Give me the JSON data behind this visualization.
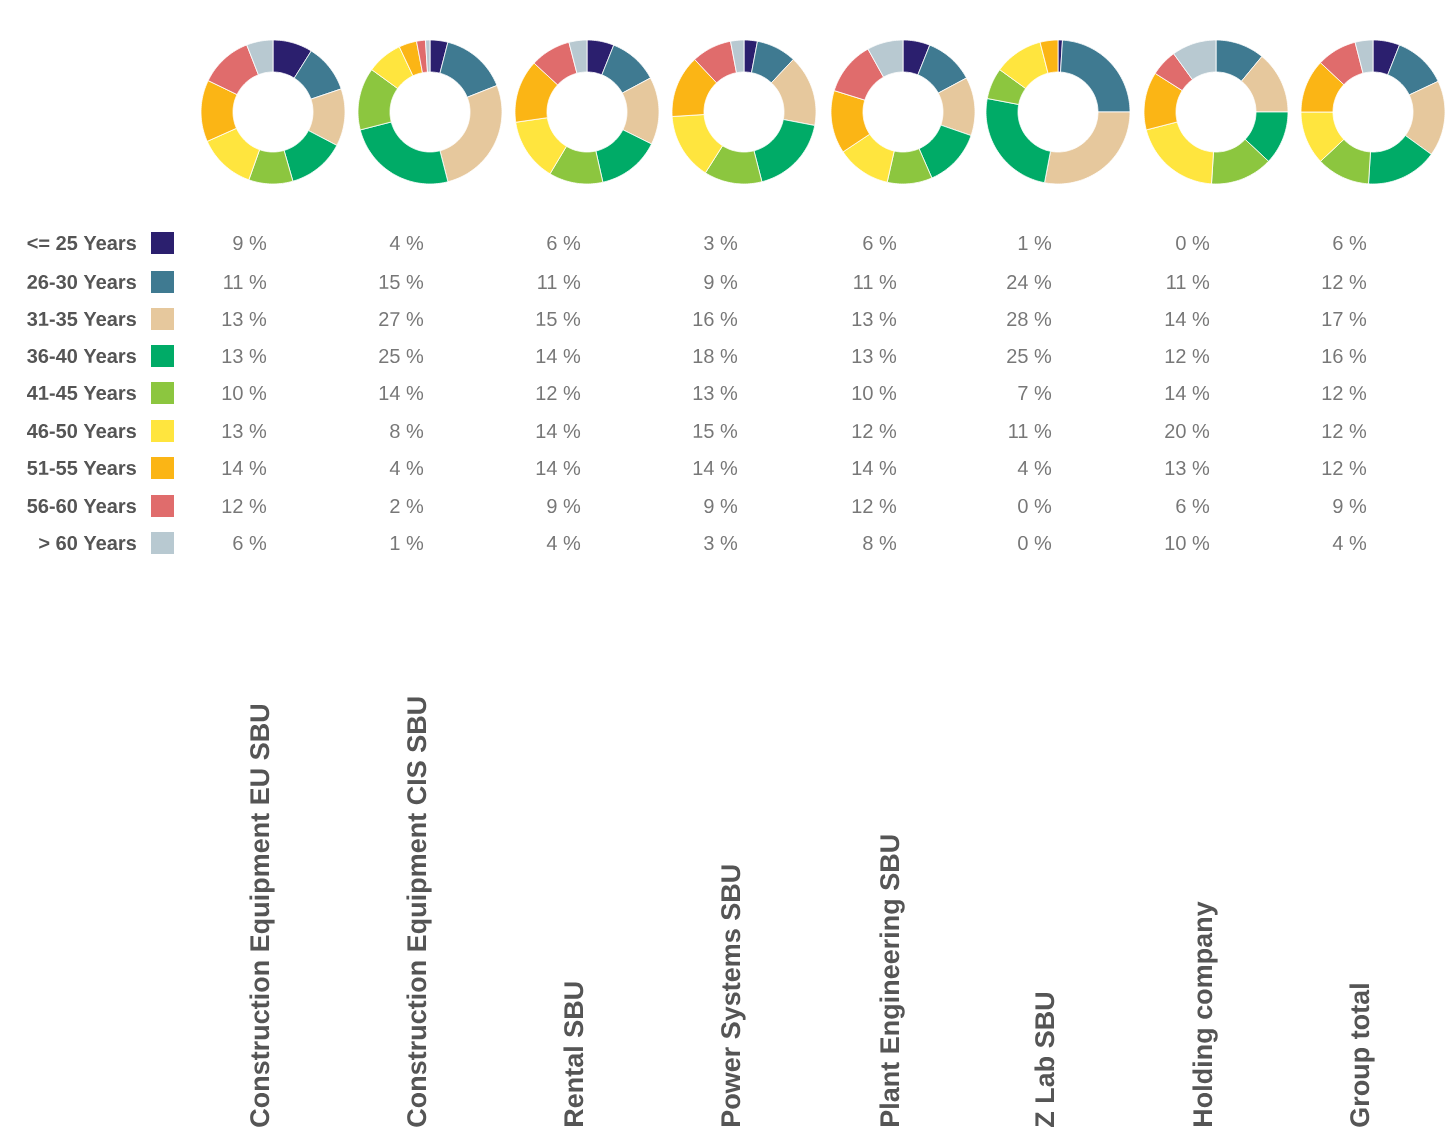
{
  "chart_data": {
    "type": "donut",
    "legend": "left",
    "categories": [
      "<= 25 Years",
      "26-30 Years",
      "31-35 Years",
      "36-40 Years",
      "41-45 Years",
      "46-50 Years",
      "51-55 Years",
      "56-60 Years",
      "> 60 Years"
    ],
    "colors": [
      "#2b1f6e",
      "#3f7a91",
      "#e6c89d",
      "#00ab67",
      "#8cc63f",
      "#ffe53e",
      "#fbb515",
      "#e06c6c",
      "#b8c9d1"
    ],
    "series": [
      {
        "name": "Construction Equipment EU SBU",
        "values": [
          9,
          11,
          13,
          13,
          10,
          13,
          14,
          12,
          6
        ],
        "value_labels": [
          "9 %",
          "11 %",
          "13 %",
          "13 %",
          "10 %",
          "13 %",
          "14 %",
          "12 %",
          "6 %"
        ]
      },
      {
        "name": "Construction Equipment CIS SBU",
        "values": [
          4,
          15,
          27,
          25,
          14,
          8,
          4,
          2,
          1
        ],
        "value_labels": [
          "4 %",
          "15 %",
          "27 %",
          "25 %",
          "14 %",
          "8 %",
          "4 %",
          "2 %",
          "1 %"
        ]
      },
      {
        "name": "Rental SBU",
        "values": [
          6,
          11,
          15,
          14,
          12,
          14,
          14,
          9,
          4
        ],
        "value_labels": [
          "6 %",
          "11 %",
          "15 %",
          "14 %",
          "12 %",
          "14 %",
          "14 %",
          "9 %",
          "4 %"
        ]
      },
      {
        "name": "Power Systems SBU",
        "values": [
          3,
          9,
          16,
          18,
          13,
          15,
          14,
          9,
          3
        ],
        "value_labels": [
          "3 %",
          "9 %",
          "16 %",
          "18 %",
          "13 %",
          "15 %",
          "14 %",
          "9 %",
          "3 %"
        ]
      },
      {
        "name": "Plant Engineering SBU",
        "values": [
          6,
          11,
          13,
          13,
          10,
          12,
          14,
          12,
          8
        ],
        "value_labels": [
          "6 %",
          "11 %",
          "13 %",
          "13 %",
          "10 %",
          "12 %",
          "14 %",
          "12 %",
          "8 %"
        ]
      },
      {
        "name": "Z Lab SBU",
        "values": [
          1,
          24,
          28,
          25,
          7,
          11,
          4,
          0,
          0
        ],
        "value_labels": [
          "1 %",
          "24 %",
          "28 %",
          "25 %",
          "7 %",
          "11 %",
          "4 %",
          "0 %",
          "0 %"
        ]
      },
      {
        "name": "Holding company",
        "values": [
          0,
          11,
          14,
          12,
          14,
          20,
          13,
          6,
          10
        ],
        "value_labels": [
          "0 %",
          "11 %",
          "14 %",
          "12 %",
          "14 %",
          "20 %",
          "13 %",
          "6 %",
          "10 %"
        ]
      },
      {
        "name": "Group total",
        "values": [
          6,
          12,
          17,
          16,
          12,
          12,
          12,
          9,
          4
        ],
        "value_labels": [
          "6 %",
          "12 %",
          "17 %",
          "16 %",
          "12 %",
          "12 %",
          "12 %",
          "9 %",
          "4 %"
        ]
      }
    ]
  }
}
